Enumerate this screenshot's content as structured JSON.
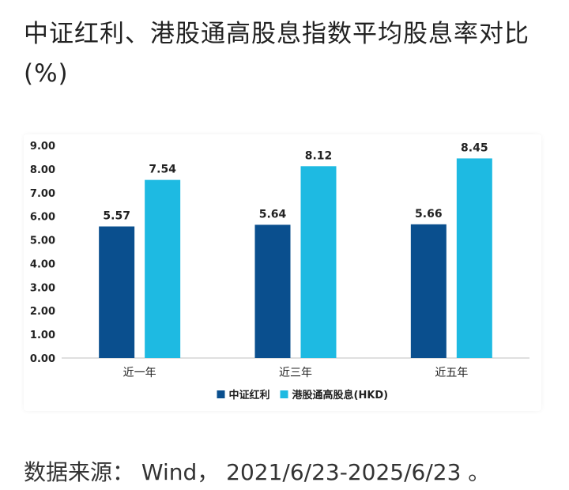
{
  "header": {
    "title": "中证红利、港股通高股息指数平均股息率对比(%)"
  },
  "chart_data": {
    "type": "bar",
    "categories": [
      "近一年",
      "近三年",
      "近五年"
    ],
    "series": [
      {
        "name": "中证红利",
        "values": [
          5.57,
          5.64,
          5.66
        ],
        "color": "#0a4f8e"
      },
      {
        "name": "港股通高股息(HKD)",
        "values": [
          7.54,
          8.12,
          8.45
        ],
        "color": "#1ebae2"
      }
    ],
    "ylim": [
      0,
      9
    ],
    "yticks": [
      "0.00",
      "1.00",
      "2.00",
      "3.00",
      "4.00",
      "5.00",
      "6.00",
      "7.00",
      "8.00",
      "9.00"
    ],
    "value_labels": [
      [
        "5.57",
        "5.64",
        "5.66"
      ],
      [
        "7.54",
        "8.12",
        "8.45"
      ]
    ],
    "legend_position": "bottom",
    "grid": false
  },
  "footer": {
    "source": "数据来源： Wind， 2021/6/23-2025/6/23 。"
  }
}
